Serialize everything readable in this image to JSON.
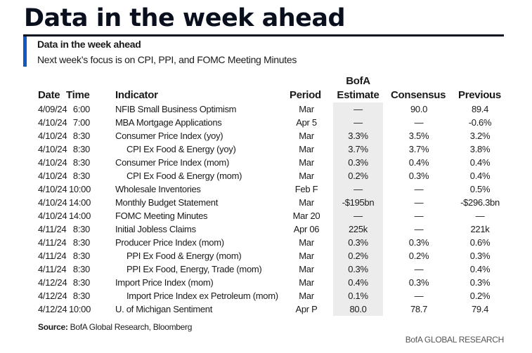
{
  "title": "Data in the week ahead",
  "subtitle": "Data in the week ahead",
  "description": "Next week’s focus is on CPI, PPI, and FOMC Meeting Minutes",
  "headers": {
    "date": "Date",
    "time": "Time",
    "indicator": "Indicator",
    "period": "Period",
    "estimate_top": "BofA",
    "estimate": "Estimate",
    "consensus": "Consensus",
    "previous": "Previous"
  },
  "rows": [
    {
      "date": "4/09/24",
      "time": "6:00",
      "indicator": "NFIB Small Business Optimism",
      "indent": false,
      "period": "Mar",
      "estimate": "—",
      "consensus": "90.0",
      "previous": "89.4"
    },
    {
      "date": "4/10/24",
      "time": "7:00",
      "indicator": "MBA Mortgage Applications",
      "indent": false,
      "period": "Apr 5",
      "estimate": "—",
      "consensus": "—",
      "previous": "-0.6%"
    },
    {
      "date": "4/10/24",
      "time": "8:30",
      "indicator": "Consumer Price Index (yoy)",
      "indent": false,
      "period": "Mar",
      "estimate": "3.3%",
      "consensus": "3.5%",
      "previous": "3.2%"
    },
    {
      "date": "4/10/24",
      "time": "8:30",
      "indicator": "CPI Ex Food & Energy (yoy)",
      "indent": true,
      "period": "Mar",
      "estimate": "3.7%",
      "consensus": "3.7%",
      "previous": "3.8%"
    },
    {
      "date": "4/10/24",
      "time": "8:30",
      "indicator": "Consumer Price Index (mom)",
      "indent": false,
      "period": "Mar",
      "estimate": "0.3%",
      "consensus": "0.4%",
      "previous": "0.4%"
    },
    {
      "date": "4/10/24",
      "time": "8:30",
      "indicator": "CPI Ex Food & Energy (mom)",
      "indent": true,
      "period": "Mar",
      "estimate": "0.2%",
      "consensus": "0.3%",
      "previous": "0.4%"
    },
    {
      "date": "4/10/24",
      "time": "10:00",
      "indicator": "Wholesale Inventories",
      "indent": false,
      "period": "Feb F",
      "estimate": "—",
      "consensus": "—",
      "previous": "0.5%"
    },
    {
      "date": "4/10/24",
      "time": "14:00",
      "indicator": "Monthly Budget Statement",
      "indent": false,
      "period": "Mar",
      "estimate": "-$195bn",
      "consensus": "—",
      "previous": "-$296.3bn"
    },
    {
      "date": "4/10/24",
      "time": "14:00",
      "indicator": "FOMC Meeting Minutes",
      "indent": false,
      "period": "Mar 20",
      "estimate": "—",
      "consensus": "—",
      "previous": "—"
    },
    {
      "date": "4/11/24",
      "time": "8:30",
      "indicator": "Initial Jobless Claims",
      "indent": false,
      "period": "Apr 06",
      "estimate": "225k",
      "consensus": "—",
      "previous": "221k"
    },
    {
      "date": "4/11/24",
      "time": "8:30",
      "indicator": "Producer Price Index (mom)",
      "indent": false,
      "period": "Mar",
      "estimate": "0.3%",
      "consensus": "0.3%",
      "previous": "0.6%"
    },
    {
      "date": "4/11/24",
      "time": "8:30",
      "indicator": "PPI Ex Food & Energy (mom)",
      "indent": true,
      "period": "Mar",
      "estimate": "0.2%",
      "consensus": "0.2%",
      "previous": "0.3%"
    },
    {
      "date": "4/11/24",
      "time": "8:30",
      "indicator": "PPI Ex Food, Energy, Trade (mom)",
      "indent": true,
      "period": "Mar",
      "estimate": "0.3%",
      "consensus": "—",
      "previous": "0.4%"
    },
    {
      "date": "4/12/24",
      "time": "8:30",
      "indicator": "Import Price Index (mom)",
      "indent": false,
      "period": "Mar",
      "estimate": "0.4%",
      "consensus": "0.3%",
      "previous": "0.3%"
    },
    {
      "date": "4/12/24",
      "time": "8:30",
      "indicator": "Import Price Index ex Petroleum (mom)",
      "indent": true,
      "period": "Mar",
      "estimate": "0.1%",
      "consensus": "—",
      "previous": "0.2%"
    },
    {
      "date": "4/12/24",
      "time": "10:00",
      "indicator": "U. of Michigan Sentiment",
      "indent": false,
      "period": "Apr P",
      "estimate": "80.0",
      "consensus": "78.7",
      "previous": "79.4"
    }
  ],
  "source_label": "Source:",
  "source_text": " BofA Global Research, Bloomberg",
  "footer": "BofA GLOBAL RESEARCH",
  "colors": {
    "accent": "#1557c0",
    "title": "#0a0f1e",
    "shade": "#ececec"
  }
}
